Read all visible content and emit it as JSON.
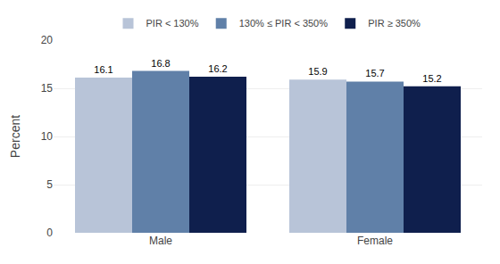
{
  "chart_data": {
    "type": "bar",
    "categories": [
      "Male",
      "Female"
    ],
    "series": [
      {
        "name": "PIR < 130%",
        "values": [
          16.1,
          15.9
        ],
        "color": "#b8c4d8"
      },
      {
        "name": "130% ≤ PIR < 350%",
        "values": [
          16.8,
          15.7
        ],
        "color": "#6080a8"
      },
      {
        "name": "PIR ≥ 350%",
        "values": [
          16.2,
          15.2
        ],
        "color": "#0f1f4d"
      }
    ],
    "ylabel": "Percent",
    "ylim": [
      0,
      20
    ],
    "yticks": [
      0,
      5,
      10,
      15,
      20
    ],
    "grid": true,
    "legend": "top",
    "data_labels": true
  }
}
